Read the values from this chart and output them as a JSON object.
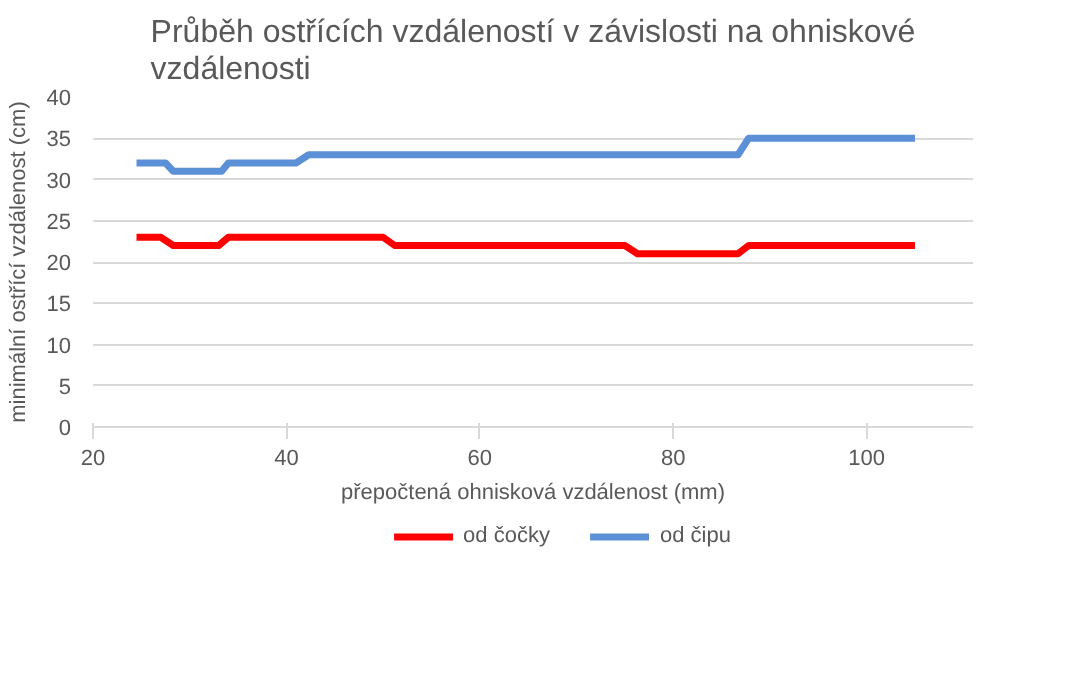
{
  "chart_data": {
    "type": "line",
    "title": "Průběh ostřících vzdáleností v závislosti na ohniskové vzdálenosti",
    "xlabel": "přepočtená ohnisková vzdálenost (mm)",
    "ylabel": "minimální ostřící vzdálenost (cm)",
    "xlim": [
      20,
      111
    ],
    "xticks": [
      20,
      40,
      60,
      80,
      100
    ],
    "ylim": [
      0,
      40
    ],
    "yticks": [
      0,
      5,
      10,
      15,
      20,
      25,
      30,
      35,
      40
    ],
    "grid": "y",
    "legend": "bottom",
    "line_style": "solid",
    "series": [
      {
        "name": "od čočky",
        "color": "#ff0000",
        "x": [
          24.5,
          27,
          28.3,
          33,
          34,
          50,
          51.2,
          75,
          76.3,
          86.7,
          87.8,
          105
        ],
        "values": [
          23,
          23,
          22,
          22,
          23,
          23,
          22,
          22,
          21,
          21,
          22,
          22
        ]
      },
      {
        "name": "od čipu",
        "color": "#5b8fd6",
        "x": [
          24.5,
          27.5,
          28.3,
          33.3,
          34,
          41,
          42.3,
          86.7,
          87.8,
          105
        ],
        "values": [
          32,
          32,
          31,
          31,
          32,
          32,
          33,
          33,
          35,
          35
        ]
      }
    ]
  }
}
